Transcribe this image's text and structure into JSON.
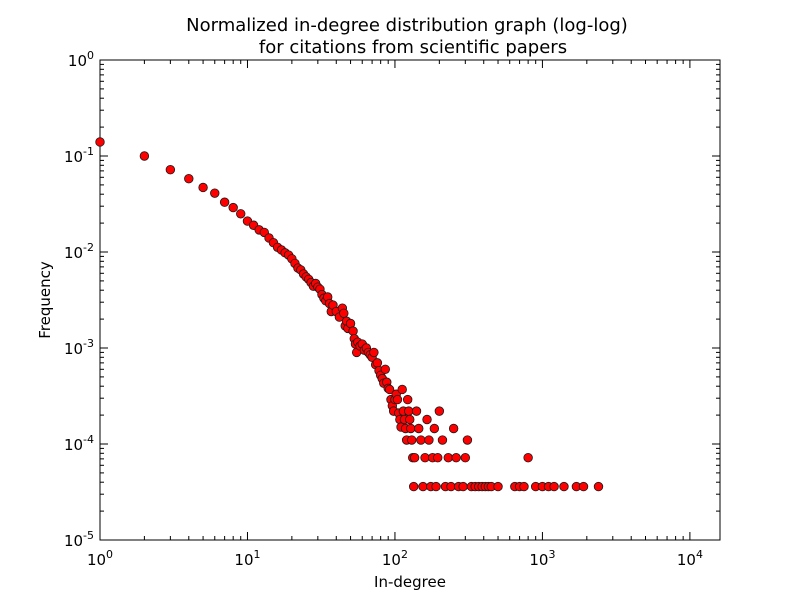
{
  "chart_data": {
    "type": "scatter",
    "title": [
      "Normalized in-degree distribution graph (log-log)",
      "for citations from scientific papers"
    ],
    "xlabel": "In-degree",
    "ylabel": "Frequency",
    "xscale": "log",
    "yscale": "log",
    "xlim": [
      1,
      16000
    ],
    "ylim": [
      1e-05,
      1
    ],
    "grid": false,
    "x_ticks": [
      {
        "base": "10",
        "exp": "0",
        "value": 1
      },
      {
        "base": "10",
        "exp": "1",
        "value": 10
      },
      {
        "base": "10",
        "exp": "2",
        "value": 100
      },
      {
        "base": "10",
        "exp": "3",
        "value": 1000
      },
      {
        "base": "10",
        "exp": "4",
        "value": 10000
      }
    ],
    "y_ticks": [
      {
        "base": "10",
        "exp": "0",
        "value": 1
      },
      {
        "base": "10",
        "exp": "-1",
        "value": 0.1
      },
      {
        "base": "10",
        "exp": "-2",
        "value": 0.01
      },
      {
        "base": "10",
        "exp": "-3",
        "value": 0.001
      },
      {
        "base": "10",
        "exp": "-4",
        "value": 0.0001
      },
      {
        "base": "10",
        "exp": "-5",
        "value": 1e-05
      }
    ],
    "marker_color": "#ff0000",
    "points": [
      [
        1,
        0.14
      ],
      [
        2,
        0.1
      ],
      [
        3,
        0.072
      ],
      [
        4,
        0.058
      ],
      [
        5,
        0.047
      ],
      [
        6,
        0.041
      ],
      [
        7,
        0.033
      ],
      [
        8,
        0.029
      ],
      [
        9,
        0.025
      ],
      [
        10,
        0.021
      ],
      [
        11,
        0.019
      ],
      [
        12,
        0.017
      ],
      [
        13,
        0.016
      ],
      [
        14,
        0.014
      ],
      [
        15,
        0.0125
      ],
      [
        16,
        0.0112
      ],
      [
        17,
        0.0105
      ],
      [
        18,
        0.0098
      ],
      [
        19,
        0.0093
      ],
      [
        20,
        0.0085
      ],
      [
        21,
        0.0076
      ],
      [
        22,
        0.0068
      ],
      [
        23,
        0.0065
      ],
      [
        24,
        0.0059
      ],
      [
        25,
        0.0055
      ],
      [
        26,
        0.0052
      ],
      [
        27,
        0.0048
      ],
      [
        28,
        0.0044
      ],
      [
        29,
        0.0047
      ],
      [
        30,
        0.0043
      ],
      [
        31,
        0.0041
      ],
      [
        32,
        0.0036
      ],
      [
        33,
        0.0033
      ],
      [
        34,
        0.0031
      ],
      [
        35,
        0.0034
      ],
      [
        36,
        0.0029
      ],
      [
        37,
        0.0024
      ],
      [
        38,
        0.0028
      ],
      [
        40,
        0.0024
      ],
      [
        42,
        0.0021
      ],
      [
        44,
        0.0026
      ],
      [
        45,
        0.0023
      ],
      [
        46,
        0.0017
      ],
      [
        47,
        0.0019
      ],
      [
        48,
        0.0016
      ],
      [
        50,
        0.0018
      ],
      [
        52,
        0.0015
      ],
      [
        53,
        0.00125
      ],
      [
        54,
        0.0011
      ],
      [
        55,
        0.0009
      ],
      [
        56,
        0.00115
      ],
      [
        58,
        0.00105
      ],
      [
        60,
        0.0011
      ],
      [
        62,
        0.00095
      ],
      [
        64,
        0.001
      ],
      [
        66,
        0.0009
      ],
      [
        68,
        0.00085
      ],
      [
        70,
        0.0008
      ],
      [
        72,
        0.0009
      ],
      [
        74,
        0.00067
      ],
      [
        76,
        0.0007
      ],
      [
        78,
        0.00058
      ],
      [
        80,
        0.00052
      ],
      [
        82,
        0.00048
      ],
      [
        84,
        0.00043
      ],
      [
        86,
        0.0006
      ],
      [
        88,
        0.00044
      ],
      [
        90,
        0.00038
      ],
      [
        92,
        0.00037
      ],
      [
        94,
        0.00029
      ],
      [
        96,
        0.00025
      ],
      [
        98,
        0.00022
      ],
      [
        100,
        0.00029
      ],
      [
        102,
        0.00033
      ],
      [
        104,
        0.00029
      ],
      [
        106,
        0.00021
      ],
      [
        108,
        0.00018
      ],
      [
        110,
        0.00015
      ],
      [
        112,
        0.00037
      ],
      [
        114,
        0.00022
      ],
      [
        116,
        0.00018
      ],
      [
        118,
        0.000145
      ],
      [
        120,
        0.00011
      ],
      [
        122,
        0.00029
      ],
      [
        124,
        0.00022
      ],
      [
        126,
        0.00018
      ],
      [
        128,
        0.000145
      ],
      [
        130,
        0.00011
      ],
      [
        132,
        7.2e-05
      ],
      [
        134,
        3.6e-05
      ],
      [
        136,
        7.2e-05
      ],
      [
        140,
        0.00022
      ],
      [
        145,
        0.000145
      ],
      [
        150,
        0.00011
      ],
      [
        155,
        3.6e-05
      ],
      [
        160,
        7.2e-05
      ],
      [
        165,
        0.00018
      ],
      [
        170,
        0.00011
      ],
      [
        175,
        3.6e-05
      ],
      [
        180,
        7.2e-05
      ],
      [
        185,
        0.000145
      ],
      [
        190,
        3.6e-05
      ],
      [
        195,
        7.2e-05
      ],
      [
        200,
        0.00022
      ],
      [
        210,
        0.00011
      ],
      [
        220,
        3.6e-05
      ],
      [
        230,
        7.2e-05
      ],
      [
        240,
        3.6e-05
      ],
      [
        250,
        0.000145
      ],
      [
        260,
        7.2e-05
      ],
      [
        270,
        3.6e-05
      ],
      [
        290,
        3.6e-05
      ],
      [
        300,
        7.2e-05
      ],
      [
        310,
        0.00011
      ],
      [
        330,
        3.6e-05
      ],
      [
        350,
        3.6e-05
      ],
      [
        370,
        3.6e-05
      ],
      [
        390,
        3.6e-05
      ],
      [
        410,
        3.6e-05
      ],
      [
        430,
        3.6e-05
      ],
      [
        450,
        3.6e-05
      ],
      [
        500,
        3.6e-05
      ],
      [
        650,
        3.6e-05
      ],
      [
        700,
        3.6e-05
      ],
      [
        750,
        3.6e-05
      ],
      [
        800,
        7.2e-05
      ],
      [
        900,
        3.6e-05
      ],
      [
        1000,
        3.6e-05
      ],
      [
        1100,
        3.6e-05
      ],
      [
        1200,
        3.6e-05
      ],
      [
        1400,
        3.6e-05
      ],
      [
        1700,
        3.6e-05
      ],
      [
        1900,
        3.6e-05
      ],
      [
        2400,
        3.6e-05
      ]
    ]
  }
}
